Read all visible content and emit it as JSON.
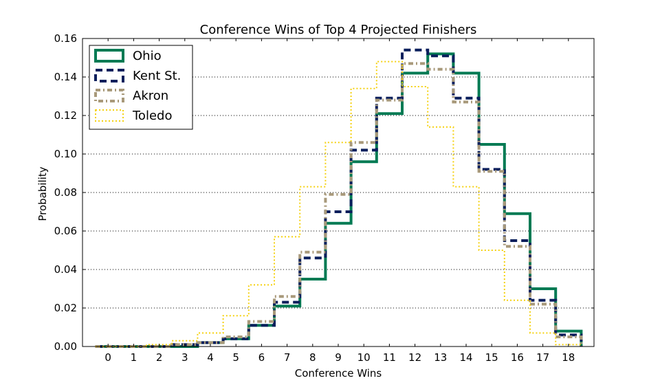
{
  "chart_data": {
    "type": "line",
    "title": "Conference Wins of Top 4 Projected Finishers",
    "xlabel": "Conference Wins",
    "ylabel": "Probability",
    "categories": [
      "0",
      "1",
      "2",
      "3",
      "4",
      "5",
      "6",
      "7",
      "8",
      "9",
      "10",
      "11",
      "12",
      "13",
      "14",
      "15",
      "16",
      "17",
      "18"
    ],
    "xlim": [
      -1,
      19
    ],
    "ylim": [
      0,
      0.16
    ],
    "yticks": [
      "0.00",
      "0.02",
      "0.04",
      "0.06",
      "0.08",
      "0.10",
      "0.12",
      "0.14",
      "0.16"
    ],
    "grid": "horizontal dotted",
    "legend_position": "top-left",
    "series": [
      {
        "name": "Ohio",
        "color": "#007a53",
        "style": "solid",
        "values": [
          0.0,
          0.0,
          0.0,
          0.0,
          0.002,
          0.004,
          0.011,
          0.021,
          0.035,
          0.064,
          0.096,
          0.121,
          0.142,
          0.152,
          0.142,
          0.105,
          0.069,
          0.03,
          0.008
        ]
      },
      {
        "name": "Kent St.",
        "color": "#0a1f5c",
        "style": "dashed",
        "values": [
          0.0,
          0.0,
          0.0,
          0.001,
          0.002,
          0.004,
          0.011,
          0.023,
          0.046,
          0.07,
          0.102,
          0.129,
          0.154,
          0.151,
          0.129,
          0.092,
          0.055,
          0.024,
          0.006
        ]
      },
      {
        "name": "Akron",
        "color": "#a8997a",
        "style": "dashdot",
        "values": [
          0.0,
          0.0,
          0.0,
          0.001,
          0.002,
          0.005,
          0.013,
          0.026,
          0.049,
          0.079,
          0.106,
          0.128,
          0.147,
          0.144,
          0.127,
          0.091,
          0.052,
          0.022,
          0.005
        ]
      },
      {
        "name": "Toledo",
        "color": "#f5d10f",
        "style": "dotted",
        "values": [
          0.0,
          0.0,
          0.001,
          0.003,
          0.007,
          0.016,
          0.032,
          0.057,
          0.083,
          0.106,
          0.134,
          0.148,
          0.135,
          0.114,
          0.083,
          0.05,
          0.024,
          0.007,
          0.001
        ]
      }
    ]
  }
}
